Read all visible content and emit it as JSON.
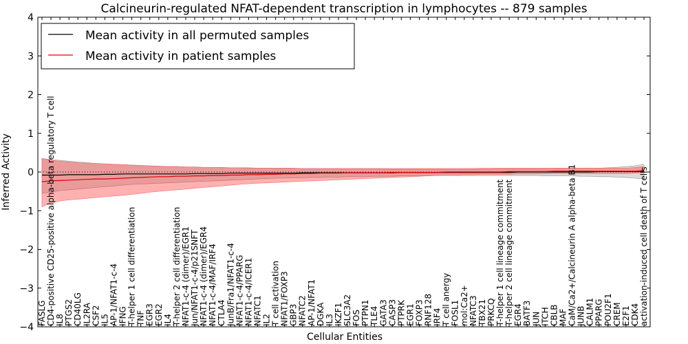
{
  "chart_data": {
    "type": "line",
    "title": "Calcineurin-regulated NFAT-dependent transcription in lymphocytes -- 879 samples",
    "xlabel": "Cellular Entities",
    "ylabel": "Inferred Activity",
    "ylim": [
      -4,
      4
    ],
    "yticks": [
      -4,
      -3,
      -2,
      -1,
      0,
      1,
      2,
      3,
      4
    ],
    "grid": false,
    "legend_position": "top-left",
    "categories": [
      "FASLG",
      "CD4-positive CD25-positive alpha-beta regulatory T cell",
      "IL8",
      "PTGS2",
      "CD40LG",
      "IL2RA",
      "CSF2",
      "IL5",
      "AP-1/NFAT1-c-4",
      "IFNG",
      "T-helper 1 cell differentiation",
      "TNF",
      "EGR3",
      "EGR2",
      "IL4",
      "T-helper 2 cell differentiation",
      "NFAT1-c-4 (dimer)/EGR1",
      "Jun/NFAT1-c-4/p21SNFT",
      "NFAT1-c-4 (dimer)/EGR4",
      "NFAT1-c-4/MAF/IRF4",
      "CTLA4",
      "JunB/Fra1/NFAT1-c-4",
      "NFAT1-c-4/PPARG",
      "NFAT1-c-4/ICER1",
      "NFATC1",
      "IL2",
      "T cell activation",
      "NFAT1/FOXP3",
      "GBP3",
      "NFATC2",
      "AP-1/NFAT1",
      "DGKA",
      "IL3",
      "IKZF1",
      "SLC3A2",
      "FOS",
      "PTPN1",
      "TLE4",
      "GATA3",
      "CASP3",
      "PTPRK",
      "EGR1",
      "FOXP3",
      "RNF128",
      "IRF4",
      "T cell anergy",
      "FOSL1",
      "mol:Ca2+",
      "NFATC3",
      "TBX21",
      "PRKCQ",
      "T-helper 1 cell lineage commitment",
      "T-helper 2 cell lineage commitment",
      "EGR4",
      "BATF3",
      "JUN",
      "ITCH",
      "CBLB",
      "MAF",
      "CaM/Ca2+/Calcineurin A alpha-beta B1",
      "JUNB",
      "CALM1",
      "PPARG",
      "POU2F1",
      "CREM",
      "E2F1",
      "CDK4",
      "activation-induced cell death of T cells"
    ],
    "series": [
      {
        "name": "Mean activity in all permuted samples",
        "color": "#000000",
        "values": [
          -0.08,
          -0.08,
          -0.08,
          -0.07,
          -0.07,
          -0.07,
          -0.07,
          -0.06,
          -0.06,
          -0.05,
          -0.05,
          -0.05,
          -0.05,
          -0.05,
          -0.05,
          -0.05,
          -0.05,
          -0.04,
          -0.04,
          -0.04,
          -0.04,
          -0.03,
          -0.03,
          -0.03,
          -0.03,
          -0.03,
          -0.03,
          -0.03,
          -0.03,
          -0.02,
          -0.02,
          -0.02,
          -0.02,
          -0.02,
          -0.02,
          -0.02,
          -0.02,
          -0.02,
          -0.02,
          -0.02,
          -0.01,
          -0.01,
          -0.01,
          -0.01,
          -0.01,
          -0.01,
          -0.01,
          -0.01,
          -0.01,
          -0.01,
          -0.01,
          -0.01,
          -0.01,
          0.0,
          0.0,
          0.0,
          0.0,
          0.0,
          0.0,
          0.0,
          0.0,
          0.0,
          0.01,
          0.01,
          0.01,
          0.01,
          0.01,
          0.02
        ],
        "band_low": [
          -0.55,
          -0.52,
          -0.48,
          -0.46,
          -0.44,
          -0.42,
          -0.4,
          -0.38,
          -0.36,
          -0.34,
          -0.32,
          -0.31,
          -0.3,
          -0.29,
          -0.28,
          -0.27,
          -0.26,
          -0.25,
          -0.24,
          -0.23,
          -0.22,
          -0.21,
          -0.2,
          -0.19,
          -0.18,
          -0.17,
          -0.16,
          -0.16,
          -0.15,
          -0.15,
          -0.14,
          -0.14,
          -0.13,
          -0.13,
          -0.12,
          -0.12,
          -0.12,
          -0.11,
          -0.11,
          -0.11,
          -0.1,
          -0.1,
          -0.1,
          -0.1,
          -0.09,
          -0.09,
          -0.09,
          -0.09,
          -0.09,
          -0.09,
          -0.09,
          -0.09,
          -0.09,
          -0.09,
          -0.09,
          -0.09,
          -0.1,
          -0.1,
          -0.1,
          -0.1,
          -0.11,
          -0.11,
          -0.12,
          -0.12,
          -0.13,
          -0.14,
          -0.16,
          -0.18
        ],
        "band_high": [
          0.35,
          0.32,
          0.3,
          0.28,
          0.26,
          0.24,
          0.22,
          0.21,
          0.2,
          0.19,
          0.18,
          0.17,
          0.16,
          0.15,
          0.14,
          0.14,
          0.13,
          0.13,
          0.12,
          0.12,
          0.11,
          0.11,
          0.11,
          0.1,
          0.1,
          0.1,
          0.09,
          0.09,
          0.09,
          0.09,
          0.08,
          0.08,
          0.08,
          0.08,
          0.08,
          0.08,
          0.08,
          0.08,
          0.07,
          0.07,
          0.07,
          0.07,
          0.07,
          0.07,
          0.07,
          0.07,
          0.07,
          0.07,
          0.07,
          0.07,
          0.07,
          0.08,
          0.08,
          0.08,
          0.08,
          0.08,
          0.08,
          0.08,
          0.09,
          0.09,
          0.09,
          0.1,
          0.1,
          0.11,
          0.12,
          0.14,
          0.16,
          0.2
        ]
      },
      {
        "name": "Mean activity in patient samples",
        "color": "#dd0000",
        "values": [
          -0.25,
          -0.23,
          -0.22,
          -0.21,
          -0.2,
          -0.19,
          -0.18,
          -0.18,
          -0.17,
          -0.16,
          -0.15,
          -0.14,
          -0.13,
          -0.12,
          -0.12,
          -0.11,
          -0.11,
          -0.1,
          -0.1,
          -0.09,
          -0.09,
          -0.08,
          -0.08,
          -0.07,
          -0.07,
          -0.06,
          -0.06,
          -0.05,
          -0.05,
          -0.04,
          -0.04,
          -0.03,
          -0.03,
          -0.03,
          -0.02,
          -0.02,
          -0.02,
          -0.02,
          -0.02,
          -0.01,
          -0.01,
          -0.01,
          -0.01,
          -0.01,
          -0.01,
          0.0,
          0.0,
          0.0,
          0.0,
          0.0,
          0.0,
          0.0,
          0.01,
          0.01,
          0.01,
          0.01,
          0.01,
          0.02,
          0.02,
          0.02,
          0.02,
          0.02,
          0.02,
          0.02,
          0.02,
          0.02,
          0.02,
          0.04
        ],
        "band_low": [
          -0.9,
          -0.8,
          -0.75,
          -0.72,
          -0.7,
          -0.68,
          -0.66,
          -0.64,
          -0.62,
          -0.6,
          -0.58,
          -0.55,
          -0.52,
          -0.5,
          -0.48,
          -0.46,
          -0.44,
          -0.42,
          -0.4,
          -0.38,
          -0.36,
          -0.34,
          -0.32,
          -0.3,
          -0.29,
          -0.28,
          -0.27,
          -0.26,
          -0.25,
          -0.24,
          -0.23,
          -0.22,
          -0.21,
          -0.2,
          -0.19,
          -0.18,
          -0.17,
          -0.16,
          -0.15,
          -0.14,
          -0.13,
          -0.12,
          -0.11,
          -0.1,
          -0.09,
          -0.08,
          -0.08,
          -0.07,
          -0.07,
          -0.06,
          -0.06,
          -0.06,
          -0.06,
          -0.05,
          -0.05,
          -0.05,
          -0.05,
          -0.04,
          -0.04,
          -0.04,
          -0.04,
          -0.04,
          -0.04,
          -0.04,
          -0.04,
          -0.04,
          -0.03,
          -0.02
        ],
        "band_high": [
          0.35,
          0.3,
          0.28,
          0.26,
          0.24,
          0.23,
          0.22,
          0.21,
          0.2,
          0.19,
          0.18,
          0.17,
          0.16,
          0.15,
          0.14,
          0.14,
          0.13,
          0.13,
          0.12,
          0.12,
          0.12,
          0.11,
          0.11,
          0.11,
          0.1,
          0.1,
          0.1,
          0.1,
          0.1,
          0.09,
          0.09,
          0.09,
          0.09,
          0.09,
          0.09,
          0.09,
          0.09,
          0.09,
          0.09,
          0.09,
          0.09,
          0.09,
          0.09,
          0.09,
          0.09,
          0.09,
          0.09,
          0.09,
          0.09,
          0.1,
          0.1,
          0.1,
          0.1,
          0.1,
          0.1,
          0.1,
          0.1,
          0.1,
          0.1,
          0.1,
          0.1,
          0.1,
          0.1,
          0.1,
          0.1,
          0.1,
          0.12,
          0.14
        ]
      }
    ]
  }
}
